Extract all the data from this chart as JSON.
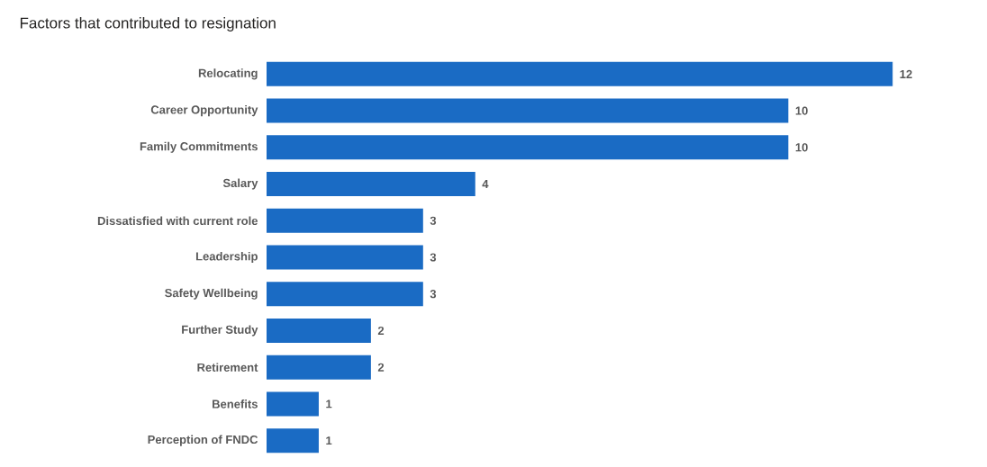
{
  "chart_data": {
    "type": "bar",
    "orientation": "horizontal",
    "title": "Factors that contributed to resignation",
    "categories": [
      "Relocating",
      "Career Opportunity",
      "Family Commitments",
      "Salary",
      "Dissatisfied with current role",
      "Leadership",
      "Safety Wellbeing",
      "Further Study",
      "Retirement",
      "Benefits",
      "Perception of FNDC"
    ],
    "values": [
      12,
      10,
      10,
      4,
      3,
      3,
      3,
      2,
      2,
      1,
      1
    ],
    "color": "#1a6bc4",
    "data_labels": true
  }
}
